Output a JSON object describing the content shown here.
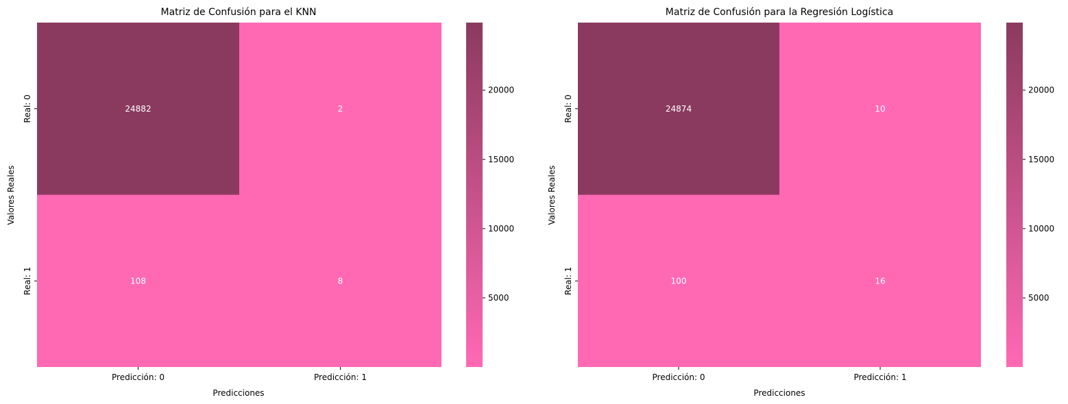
{
  "colors": {
    "low": "#ff69b4",
    "high": "#8b3a5f",
    "text_annotation": "#ffffff"
  },
  "chart_data": [
    {
      "type": "heatmap",
      "title": "Matriz de Confusión para el KNN",
      "xlabel": "Predicciones",
      "ylabel": "Valores Reales",
      "x_categories": [
        "Predicción: 0",
        "Predicción: 1"
      ],
      "y_categories": [
        "Real: 0",
        "Real: 1"
      ],
      "values": [
        [
          24882,
          2
        ],
        [
          108,
          8
        ]
      ],
      "colorbar": {
        "vmin": 2,
        "vmax": 24882,
        "ticks": [
          20000,
          15000,
          10000,
          5000
        ],
        "tick_labels": [
          "20000",
          "15000",
          "10000",
          "5000"
        ]
      }
    },
    {
      "type": "heatmap",
      "title": "Matriz de Confusión para la Regresión Logística",
      "xlabel": "Predicciones",
      "ylabel": "Valores Reales",
      "x_categories": [
        "Predicción: 0",
        "Predicción: 1"
      ],
      "y_categories": [
        "Real: 0",
        "Real: 1"
      ],
      "values": [
        [
          24874,
          10
        ],
        [
          100,
          16
        ]
      ],
      "colorbar": {
        "vmin": 10,
        "vmax": 24874,
        "ticks": [
          20000,
          15000,
          10000,
          5000
        ],
        "tick_labels": [
          "20000",
          "15000",
          "10000",
          "5000"
        ]
      }
    }
  ]
}
